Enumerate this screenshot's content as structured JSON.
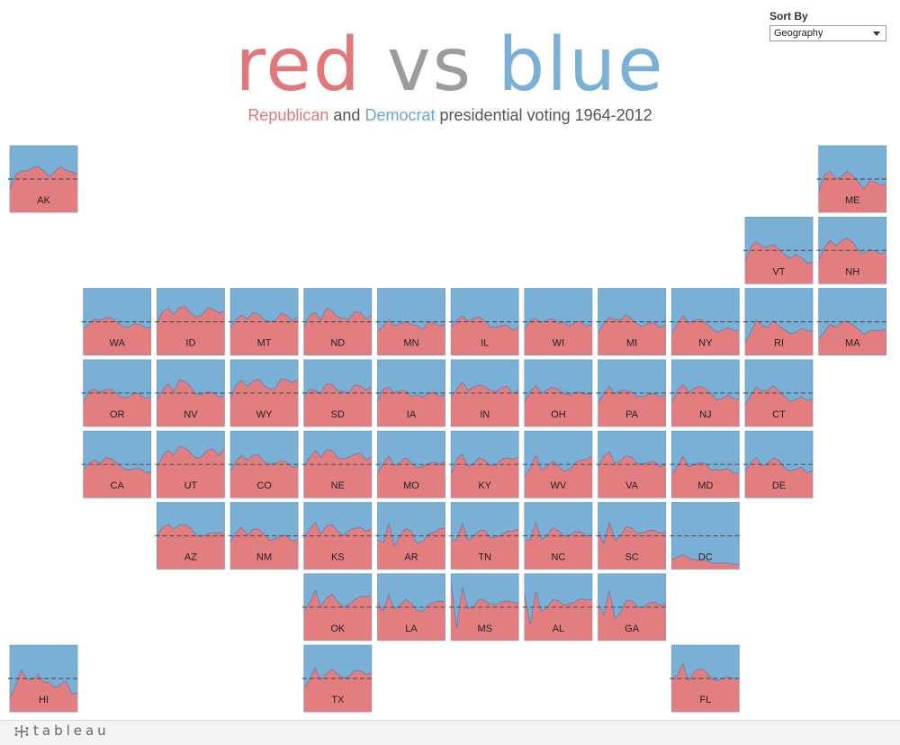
{
  "header": {
    "title_red": "red",
    "title_vs": "vs",
    "title_blue": "blue",
    "subtitle_rep": "Republican",
    "subtitle_and": "and",
    "subtitle_dem": "Democrat",
    "subtitle_rest": "presidential voting 1964-2012"
  },
  "controls": {
    "sort_label": "Sort By",
    "sort_value": "Geography"
  },
  "footer": {
    "brand": "tableau"
  },
  "colors": {
    "republican": "#e27d80",
    "democrat": "#7aafd6",
    "midline": "#555555"
  },
  "chart_data": {
    "type": "area",
    "subtype": "tile-grid small multiples (stacked 100% area per state)",
    "title": "red vs blue",
    "subtitle": "Republican and Democrat presidential voting 1964-2012",
    "x": [
      1964,
      1968,
      1972,
      1976,
      1980,
      1984,
      1988,
      1992,
      1996,
      2000,
      2004,
      2008,
      2012
    ],
    "ylim": [
      0,
      1
    ],
    "reference_line": 0.5,
    "value_meaning": "Republican share of two-party vote",
    "states": [
      {
        "code": "AK",
        "row": 0,
        "col": 0,
        "values": [
          0.35,
          0.56,
          0.62,
          0.62,
          0.67,
          0.69,
          0.62,
          0.54,
          0.61,
          0.69,
          0.63,
          0.61,
          0.57
        ]
      },
      {
        "code": "ME",
        "row": 0,
        "col": 11,
        "values": [
          0.31,
          0.56,
          0.62,
          0.51,
          0.53,
          0.61,
          0.56,
          0.46,
          0.35,
          0.47,
          0.46,
          0.41,
          0.42
        ]
      },
      {
        "code": "VT",
        "row": 1,
        "col": 10,
        "values": [
          0.34,
          0.55,
          0.63,
          0.56,
          0.55,
          0.59,
          0.52,
          0.44,
          0.38,
          0.44,
          0.39,
          0.31,
          0.32
        ]
      },
      {
        "code": "NH",
        "row": 1,
        "col": 11,
        "values": [
          0.36,
          0.54,
          0.65,
          0.57,
          0.64,
          0.69,
          0.63,
          0.51,
          0.45,
          0.51,
          0.49,
          0.45,
          0.47
        ]
      },
      {
        "code": "WA",
        "row": 2,
        "col": 1,
        "values": [
          0.38,
          0.47,
          0.54,
          0.52,
          0.56,
          0.56,
          0.49,
          0.43,
          0.42,
          0.47,
          0.46,
          0.41,
          0.42
        ]
      },
      {
        "code": "ID",
        "row": 2,
        "col": 2,
        "values": [
          0.49,
          0.65,
          0.7,
          0.61,
          0.71,
          0.73,
          0.63,
          0.57,
          0.6,
          0.71,
          0.69,
          0.63,
          0.66
        ]
      },
      {
        "code": "MT",
        "row": 2,
        "col": 3,
        "values": [
          0.41,
          0.54,
          0.6,
          0.54,
          0.64,
          0.61,
          0.53,
          0.5,
          0.52,
          0.63,
          0.6,
          0.51,
          0.57
        ]
      },
      {
        "code": "ND",
        "row": 2,
        "col": 4,
        "values": [
          0.42,
          0.59,
          0.64,
          0.53,
          0.71,
          0.66,
          0.57,
          0.55,
          0.54,
          0.65,
          0.64,
          0.54,
          0.6
        ]
      },
      {
        "code": "MN",
        "row": 2,
        "col": 5,
        "values": [
          0.36,
          0.43,
          0.53,
          0.44,
          0.47,
          0.5,
          0.46,
          0.44,
          0.39,
          0.49,
          0.48,
          0.44,
          0.46
        ]
      },
      {
        "code": "IL",
        "row": 2,
        "col": 6,
        "values": [
          0.41,
          0.52,
          0.59,
          0.51,
          0.55,
          0.57,
          0.51,
          0.42,
          0.42,
          0.44,
          0.45,
          0.37,
          0.42
        ]
      },
      {
        "code": "WI",
        "row": 2,
        "col": 7,
        "values": [
          0.38,
          0.52,
          0.55,
          0.49,
          0.52,
          0.55,
          0.48,
          0.49,
          0.43,
          0.5,
          0.5,
          0.43,
          0.47
        ]
      },
      {
        "code": "MI",
        "row": 2,
        "col": 8,
        "values": [
          0.33,
          0.47,
          0.57,
          0.53,
          0.53,
          0.6,
          0.54,
          0.46,
          0.43,
          0.48,
          0.48,
          0.42,
          0.45
        ]
      },
      {
        "code": "NY",
        "row": 2,
        "col": 9,
        "values": [
          0.31,
          0.47,
          0.59,
          0.48,
          0.52,
          0.54,
          0.48,
          0.41,
          0.34,
          0.37,
          0.41,
          0.37,
          0.36
        ]
      },
      {
        "code": "RI",
        "row": 2,
        "col": 10,
        "values": [
          0.19,
          0.34,
          0.53,
          0.44,
          0.42,
          0.52,
          0.44,
          0.38,
          0.32,
          0.34,
          0.4,
          0.36,
          0.36
        ]
      },
      {
        "code": "MA",
        "row": 2,
        "col": 11,
        "values": [
          0.24,
          0.34,
          0.46,
          0.42,
          0.48,
          0.51,
          0.46,
          0.39,
          0.31,
          0.36,
          0.37,
          0.37,
          0.38
        ]
      },
      {
        "code": "OR",
        "row": 3,
        "col": 1,
        "values": [
          0.36,
          0.53,
          0.56,
          0.51,
          0.55,
          0.56,
          0.48,
          0.43,
          0.44,
          0.5,
          0.48,
          0.42,
          0.44
        ]
      },
      {
        "code": "NV",
        "row": 3,
        "col": 2,
        "values": [
          0.41,
          0.54,
          0.64,
          0.52,
          0.7,
          0.67,
          0.6,
          0.48,
          0.48,
          0.52,
          0.51,
          0.44,
          0.46
        ]
      },
      {
        "code": "WY",
        "row": 3,
        "col": 3,
        "values": [
          0.43,
          0.62,
          0.69,
          0.6,
          0.68,
          0.71,
          0.61,
          0.56,
          0.57,
          0.72,
          0.7,
          0.66,
          0.71
        ]
      },
      {
        "code": "SD",
        "row": 3,
        "col": 4,
        "values": [
          0.44,
          0.56,
          0.54,
          0.5,
          0.64,
          0.63,
          0.53,
          0.52,
          0.51,
          0.62,
          0.61,
          0.54,
          0.59
        ]
      },
      {
        "code": "IA",
        "row": 3,
        "col": 5,
        "values": [
          0.38,
          0.56,
          0.59,
          0.5,
          0.54,
          0.54,
          0.45,
          0.47,
          0.44,
          0.49,
          0.51,
          0.45,
          0.47
        ]
      },
      {
        "code": "IN",
        "row": 3,
        "col": 6,
        "values": [
          0.44,
          0.56,
          0.66,
          0.54,
          0.59,
          0.62,
          0.6,
          0.54,
          0.52,
          0.58,
          0.6,
          0.49,
          0.55
        ]
      },
      {
        "code": "OH",
        "row": 3,
        "col": 7,
        "values": [
          0.37,
          0.53,
          0.61,
          0.5,
          0.55,
          0.59,
          0.55,
          0.49,
          0.47,
          0.52,
          0.51,
          0.48,
          0.49
        ]
      },
      {
        "code": "PA",
        "row": 3,
        "col": 8,
        "values": [
          0.35,
          0.49,
          0.6,
          0.49,
          0.54,
          0.54,
          0.51,
          0.45,
          0.45,
          0.48,
          0.49,
          0.45,
          0.47
        ]
      },
      {
        "code": "NJ",
        "row": 3,
        "col": 9,
        "values": [
          0.34,
          0.54,
          0.63,
          0.51,
          0.57,
          0.6,
          0.57,
          0.49,
          0.4,
          0.42,
          0.47,
          0.42,
          0.41
        ]
      },
      {
        "code": "CT",
        "row": 3,
        "col": 10,
        "values": [
          0.32,
          0.47,
          0.59,
          0.53,
          0.54,
          0.61,
          0.53,
          0.45,
          0.38,
          0.4,
          0.45,
          0.39,
          0.41
        ]
      },
      {
        "code": "CA",
        "row": 4,
        "col": 1,
        "values": [
          0.41,
          0.52,
          0.57,
          0.51,
          0.61,
          0.58,
          0.52,
          0.44,
          0.42,
          0.43,
          0.45,
          0.38,
          0.38
        ]
      },
      {
        "code": "UT",
        "row": 4,
        "col": 2,
        "values": [
          0.45,
          0.63,
          0.71,
          0.64,
          0.77,
          0.75,
          0.67,
          0.59,
          0.62,
          0.72,
          0.73,
          0.64,
          0.74
        ]
      },
      {
        "code": "CO",
        "row": 4,
        "col": 3,
        "values": [
          0.39,
          0.55,
          0.64,
          0.56,
          0.64,
          0.64,
          0.54,
          0.5,
          0.52,
          0.56,
          0.53,
          0.46,
          0.47
        ]
      },
      {
        "code": "NE",
        "row": 4,
        "col": 4,
        "values": [
          0.47,
          0.6,
          0.71,
          0.61,
          0.72,
          0.71,
          0.6,
          0.58,
          0.61,
          0.65,
          0.67,
          0.57,
          0.61
        ]
      },
      {
        "code": "MO",
        "row": 4,
        "col": 5,
        "values": [
          0.36,
          0.52,
          0.62,
          0.48,
          0.53,
          0.6,
          0.52,
          0.45,
          0.47,
          0.51,
          0.54,
          0.5,
          0.55
        ]
      },
      {
        "code": "KY",
        "row": 4,
        "col": 6,
        "values": [
          0.36,
          0.58,
          0.65,
          0.47,
          0.51,
          0.6,
          0.56,
          0.48,
          0.49,
          0.58,
          0.6,
          0.58,
          0.61
        ]
      },
      {
        "code": "WV",
        "row": 4,
        "col": 7,
        "values": [
          0.32,
          0.45,
          0.64,
          0.42,
          0.47,
          0.55,
          0.48,
          0.4,
          0.42,
          0.53,
          0.57,
          0.57,
          0.63
        ]
      },
      {
        "code": "VA",
        "row": 4,
        "col": 8,
        "values": [
          0.46,
          0.63,
          0.69,
          0.51,
          0.56,
          0.63,
          0.61,
          0.51,
          0.51,
          0.54,
          0.54,
          0.47,
          0.49
        ]
      },
      {
        "code": "MD",
        "row": 4,
        "col": 9,
        "values": [
          0.35,
          0.47,
          0.62,
          0.47,
          0.49,
          0.53,
          0.51,
          0.42,
          0.42,
          0.42,
          0.44,
          0.37,
          0.37
        ]
      },
      {
        "code": "DE",
        "row": 4,
        "col": 10,
        "values": [
          0.39,
          0.53,
          0.6,
          0.47,
          0.52,
          0.6,
          0.56,
          0.45,
          0.4,
          0.43,
          0.46,
          0.37,
          0.41
        ]
      },
      {
        "code": "AZ",
        "row": 5,
        "col": 2,
        "values": [
          0.5,
          0.63,
          0.67,
          0.6,
          0.66,
          0.67,
          0.61,
          0.51,
          0.49,
          0.53,
          0.55,
          0.54,
          0.55
        ]
      },
      {
        "code": "NM",
        "row": 5,
        "col": 3,
        "values": [
          0.41,
          0.55,
          0.63,
          0.51,
          0.6,
          0.6,
          0.52,
          0.43,
          0.46,
          0.5,
          0.5,
          0.42,
          0.45
        ]
      },
      {
        "code": "KS",
        "row": 5,
        "col": 4,
        "values": [
          0.45,
          0.6,
          0.7,
          0.53,
          0.65,
          0.67,
          0.57,
          0.5,
          0.58,
          0.61,
          0.63,
          0.57,
          0.61
        ]
      },
      {
        "code": "AR",
        "row": 5,
        "col": 5,
        "values": [
          0.44,
          0.4,
          0.69,
          0.35,
          0.5,
          0.61,
          0.57,
          0.39,
          0.41,
          0.53,
          0.55,
          0.6,
          0.62
        ]
      },
      {
        "code": "TN",
        "row": 5,
        "col": 6,
        "values": [
          0.44,
          0.44,
          0.68,
          0.43,
          0.5,
          0.58,
          0.58,
          0.47,
          0.48,
          0.52,
          0.57,
          0.57,
          0.6
        ]
      },
      {
        "code": "NC",
        "row": 5,
        "col": 7,
        "values": [
          0.44,
          0.44,
          0.7,
          0.44,
          0.51,
          0.62,
          0.58,
          0.5,
          0.51,
          0.56,
          0.56,
          0.5,
          0.51
        ]
      },
      {
        "code": "SC",
        "row": 5,
        "col": 8,
        "values": [
          0.59,
          0.38,
          0.71,
          0.43,
          0.51,
          0.64,
          0.62,
          0.53,
          0.55,
          0.58,
          0.58,
          0.54,
          0.55
        ]
      },
      {
        "code": "DC",
        "row": 5,
        "col": 9,
        "values": [
          0.14,
          0.18,
          0.22,
          0.17,
          0.14,
          0.14,
          0.14,
          0.09,
          0.09,
          0.09,
          0.09,
          0.07,
          0.07
        ]
      },
      {
        "code": "OK",
        "row": 6,
        "col": 4,
        "values": [
          0.44,
          0.56,
          0.75,
          0.51,
          0.64,
          0.69,
          0.58,
          0.5,
          0.54,
          0.61,
          0.66,
          0.66,
          0.67
        ]
      },
      {
        "code": "LA",
        "row": 6,
        "col": 5,
        "values": [
          0.57,
          0.44,
          0.69,
          0.47,
          0.52,
          0.62,
          0.55,
          0.46,
          0.43,
          0.54,
          0.57,
          0.59,
          0.58
        ]
      },
      {
        "code": "MS",
        "row": 6,
        "col": 6,
        "values": [
          0.87,
          0.19,
          0.8,
          0.48,
          0.5,
          0.62,
          0.6,
          0.54,
          0.54,
          0.58,
          0.59,
          0.57,
          0.56
        ]
      },
      {
        "code": "AL",
        "row": 6,
        "col": 7,
        "values": [
          0.69,
          0.24,
          0.74,
          0.43,
          0.5,
          0.61,
          0.6,
          0.53,
          0.55,
          0.58,
          0.63,
          0.61,
          0.61
        ]
      },
      {
        "code": "GA",
        "row": 6,
        "col": 8,
        "values": [
          0.54,
          0.39,
          0.75,
          0.33,
          0.42,
          0.6,
          0.6,
          0.5,
          0.5,
          0.56,
          0.58,
          0.53,
          0.54
        ]
      },
      {
        "code": "HI",
        "row": 7,
        "col": 0,
        "values": [
          0.21,
          0.39,
          0.63,
          0.49,
          0.48,
          0.56,
          0.45,
          0.44,
          0.36,
          0.41,
          0.46,
          0.27,
          0.28
        ]
      },
      {
        "code": "TX",
        "row": 7,
        "col": 4,
        "values": [
          0.37,
          0.49,
          0.66,
          0.48,
          0.58,
          0.64,
          0.56,
          0.51,
          0.53,
          0.62,
          0.62,
          0.56,
          0.58
        ]
      },
      {
        "code": "FL",
        "row": 7,
        "col": 9,
        "values": [
          0.49,
          0.55,
          0.72,
          0.47,
          0.6,
          0.65,
          0.61,
          0.51,
          0.46,
          0.5,
          0.53,
          0.49,
          0.5
        ]
      }
    ]
  }
}
